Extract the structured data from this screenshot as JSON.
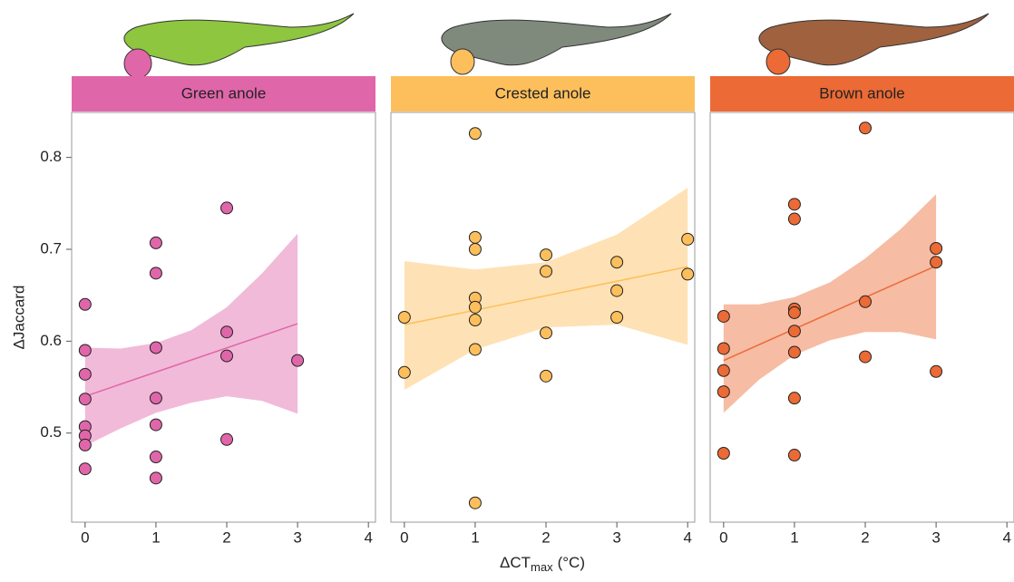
{
  "chart_data": {
    "type": "scatter",
    "y_label": "ΔJaccard",
    "x_label": "ΔCT",
    "x_label_sub": "max",
    "x_label_unit": "(°C)",
    "ylim": [
      0.403,
      0.849
    ],
    "yticks": [
      0.5,
      0.6,
      0.7,
      0.8
    ],
    "xlim": [
      -0.19,
      4.1
    ],
    "xticks": [
      0,
      1,
      2,
      3,
      4
    ],
    "series": [
      {
        "name": "Green anole",
        "color": "#e066aa",
        "x": [
          0,
          0,
          0,
          0,
          0,
          0,
          0,
          0,
          1,
          1,
          1,
          1,
          1,
          1,
          1,
          2,
          2,
          2,
          2,
          3
        ],
        "values": [
          0.64,
          0.59,
          0.564,
          0.537,
          0.507,
          0.497,
          0.487,
          0.461,
          0.707,
          0.674,
          0.593,
          0.538,
          0.509,
          0.474,
          0.451,
          0.745,
          0.61,
          0.584,
          0.493,
          0.579
        ],
        "fit_x": [
          0,
          3
        ],
        "fit_y": [
          0.54,
          0.619
        ],
        "band_x": [
          0,
          0.5,
          1,
          1.5,
          2,
          2.5,
          3
        ],
        "band_upper": [
          0.593,
          0.592,
          0.598,
          0.612,
          0.637,
          0.674,
          0.717
        ],
        "band_lower": [
          0.486,
          0.505,
          0.522,
          0.533,
          0.54,
          0.535,
          0.521
        ]
      },
      {
        "name": "Crested anole",
        "color": "#fdbf5c",
        "x": [
          0,
          0,
          1,
          1,
          1,
          1,
          1,
          1,
          1,
          1,
          2,
          2,
          2,
          2,
          3,
          3,
          3,
          4,
          4
        ],
        "values": [
          0.626,
          0.566,
          0.826,
          0.713,
          0.7,
          0.647,
          0.637,
          0.623,
          0.591,
          0.424,
          0.694,
          0.676,
          0.609,
          0.562,
          0.686,
          0.655,
          0.626,
          0.711,
          0.673
        ],
        "fit_x": [
          0,
          4
        ],
        "fit_y": [
          0.618,
          0.681
        ],
        "band_x": [
          0,
          1,
          2,
          3,
          4
        ],
        "band_upper": [
          0.687,
          0.678,
          0.686,
          0.716,
          0.767
        ],
        "band_lower": [
          0.547,
          0.591,
          0.615,
          0.618,
          0.596
        ]
      },
      {
        "name": "Brown anole",
        "color": "#ec6a35",
        "x": [
          0,
          0,
          0,
          0,
          0,
          1,
          1,
          1,
          1,
          1,
          1,
          1,
          1,
          2,
          2,
          2,
          3,
          3,
          3
        ],
        "values": [
          0.627,
          0.592,
          0.568,
          0.545,
          0.478,
          0.749,
          0.733,
          0.635,
          0.631,
          0.611,
          0.588,
          0.538,
          0.476,
          0.832,
          0.643,
          0.583,
          0.701,
          0.686,
          0.567
        ],
        "fit_x": [
          0,
          3
        ],
        "fit_y": [
          0.579,
          0.682
        ],
        "band_x": [
          0,
          0.5,
          1,
          1.5,
          2,
          2.5,
          3
        ],
        "band_upper": [
          0.64,
          0.64,
          0.648,
          0.664,
          0.69,
          0.722,
          0.76
        ],
        "band_lower": [
          0.522,
          0.558,
          0.585,
          0.601,
          0.61,
          0.61,
          0.602
        ]
      }
    ]
  }
}
